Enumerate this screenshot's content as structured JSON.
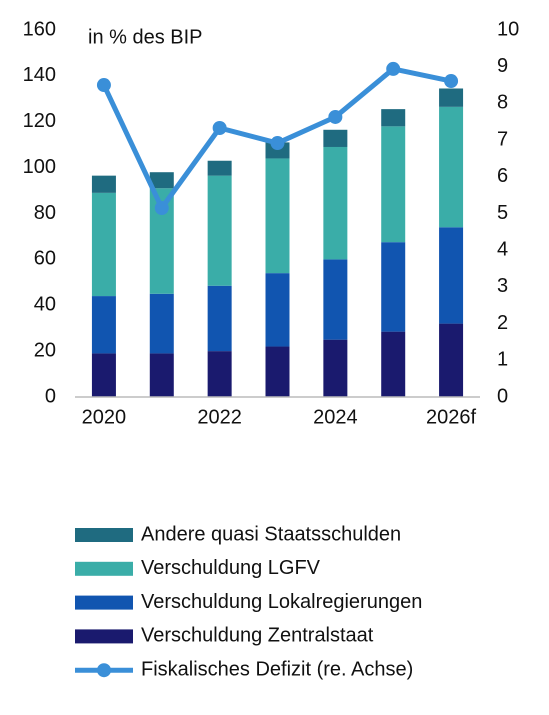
{
  "chart_data": {
    "type": "bar",
    "stacked": true,
    "annotation": "in % des BIP",
    "categories": [
      "2020",
      null,
      "2022",
      null,
      "2024",
      null,
      "2026f"
    ],
    "series": [
      {
        "name": "Andere quasi Staatsschulden",
        "color": "#1f6b80",
        "values": [
          7.5,
          7,
          6.5,
          7,
          7.5,
          7.5,
          8
        ]
      },
      {
        "name": "Verschuldung LGFV",
        "color": "#3aada8",
        "values": [
          45,
          46,
          48,
          50,
          49,
          50.5,
          52.5
        ]
      },
      {
        "name": "Verschuldung Lokalregierungen",
        "color": "#1155b0",
        "values": [
          25,
          26,
          28.5,
          32,
          35,
          39,
          42
        ]
      },
      {
        "name": "Verschuldung Zentralstaat",
        "color": "#1a1a6e",
        "values": [
          19,
          19,
          20,
          22,
          25,
          28.5,
          32
        ]
      },
      {
        "name": "Fiskalisches Defizit (re. Achse)",
        "color": "#3a8fd8",
        "type": "line",
        "axis": "y2",
        "values": [
          8.5,
          5.15,
          7.33,
          6.92,
          7.63,
          8.94,
          8.61
        ]
      }
    ],
    "ylim": [
      0,
      160
    ],
    "yticks": [
      0,
      20,
      40,
      60,
      80,
      100,
      120,
      140,
      160
    ],
    "y2lim": [
      0,
      10
    ],
    "y2ticks": [
      0,
      1,
      2,
      3,
      4,
      5,
      6,
      7,
      8,
      9,
      10
    ]
  }
}
